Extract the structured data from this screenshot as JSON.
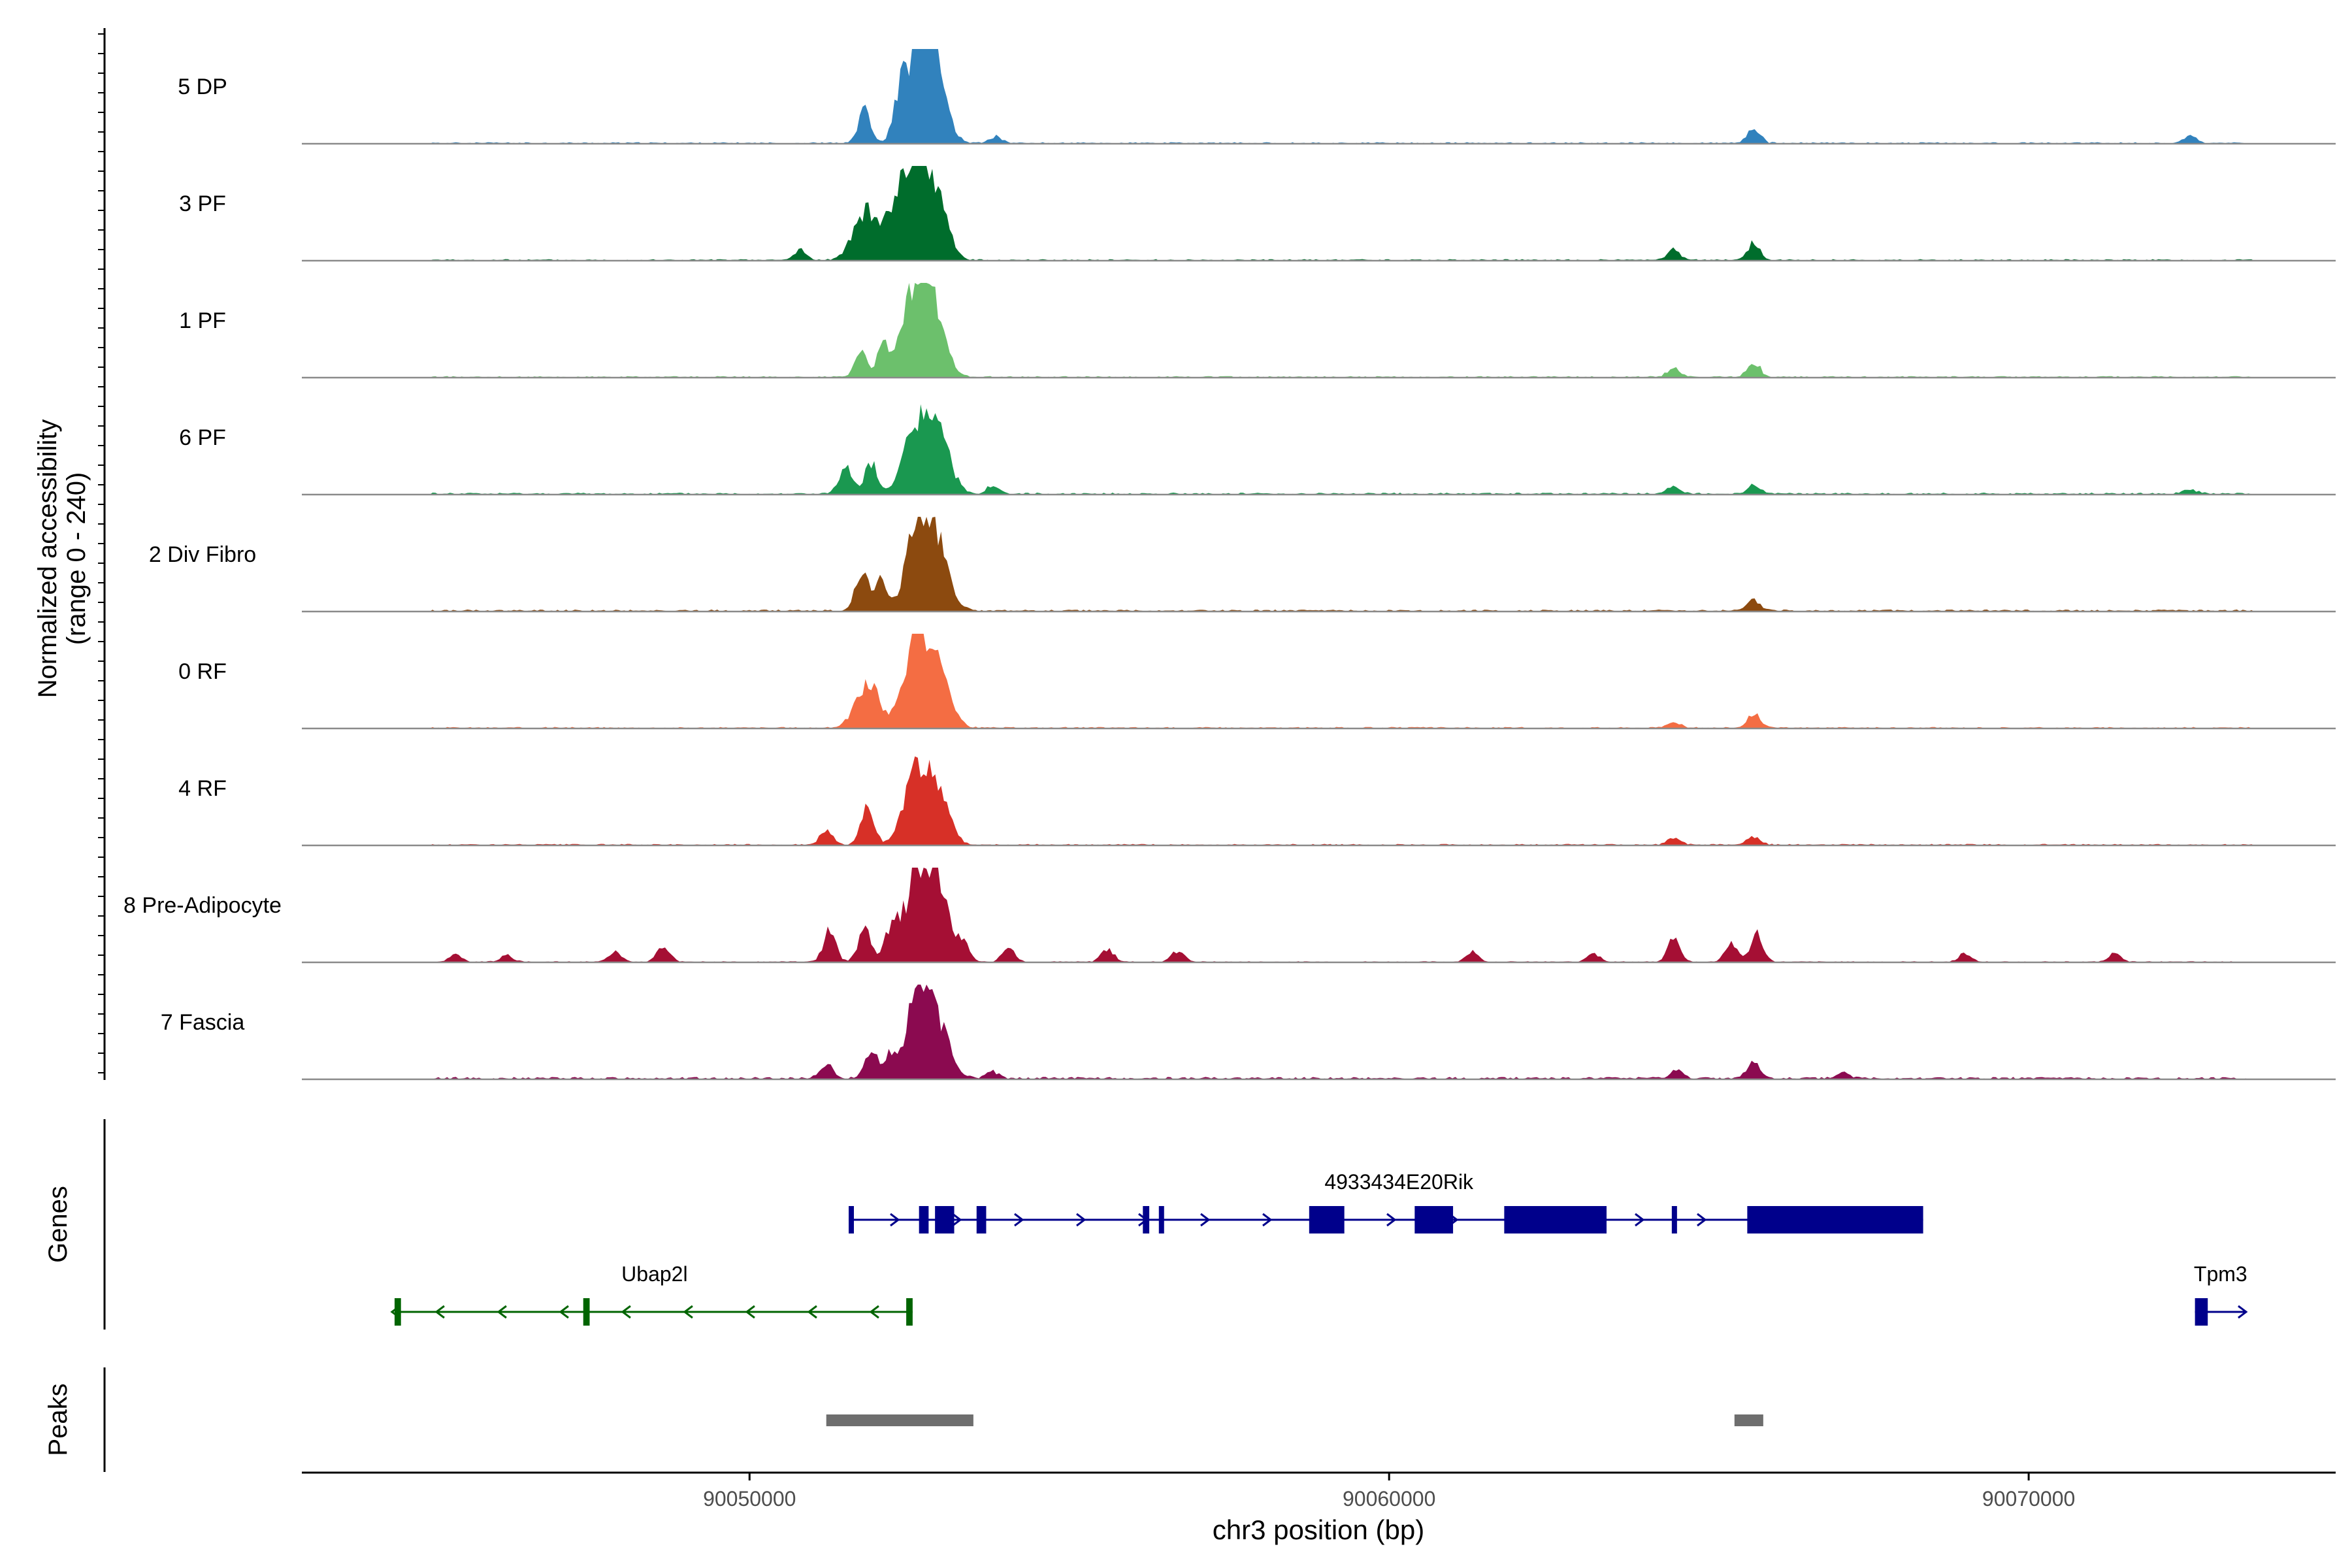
{
  "chart_data": {
    "type": "area",
    "region": "chr3",
    "x_range": [
      90043000,
      90074800
    ],
    "y_axis_label": "Normalized accessibility",
    "y_axis_range_label": "(range 0 - 240)",
    "y_range": [
      0,
      240
    ],
    "x_axis_label": "chr3 position (bp)",
    "x_ticks": [
      {
        "value": 90050000,
        "label": "90050000"
      },
      {
        "value": 90060000,
        "label": "90060000"
      },
      {
        "value": 90070000,
        "label": "90070000"
      }
    ],
    "tracks": [
      {
        "name": "5 DP",
        "color": "#3182bd",
        "peaks": [
          [
            90051800,
            84
          ],
          [
            90052350,
            100
          ],
          [
            90052650,
            240
          ],
          [
            90052900,
            150
          ],
          [
            90053850,
            18
          ],
          [
            90065700,
            40
          ],
          [
            90072530,
            18
          ]
        ],
        "noise": 4,
        "seed": 11
      },
      {
        "name": "3 PF",
        "color": "#006d2c",
        "peaks": [
          [
            90051800,
            120
          ],
          [
            90052250,
            110
          ],
          [
            90052600,
            225
          ],
          [
            90052900,
            160
          ],
          [
            90050800,
            25
          ],
          [
            90064450,
            25
          ],
          [
            90065700,
            45
          ]
        ],
        "noise": 4,
        "seed": 23
      },
      {
        "name": "1 PF",
        "color": "#6cc06c",
        "peaks": [
          [
            90051750,
            60
          ],
          [
            90052100,
            80
          ],
          [
            90052400,
            60
          ],
          [
            90052650,
            240
          ],
          [
            90052900,
            115
          ],
          [
            90064450,
            22
          ],
          [
            90065700,
            40
          ]
        ],
        "noise": 4,
        "seed": 37
      },
      {
        "name": "6 PF",
        "color": "#1a9850",
        "peaks": [
          [
            90051500,
            70
          ],
          [
            90051900,
            80
          ],
          [
            90052600,
            165
          ],
          [
            90052950,
            145
          ],
          [
            90053800,
            20
          ],
          [
            90064450,
            18
          ],
          [
            90065700,
            22
          ],
          [
            90072530,
            12
          ]
        ],
        "noise": 5,
        "seed": 41
      },
      {
        "name": "2 Div Fibro",
        "color": "#8c4a0f",
        "peaks": [
          [
            90051750,
            100
          ],
          [
            90052050,
            80
          ],
          [
            90052650,
            240
          ],
          [
            90052950,
            130
          ],
          [
            90065700,
            30
          ]
        ],
        "noise": 5,
        "seed": 53
      },
      {
        "name": "0 RF",
        "color": "#f46d43",
        "peaks": [
          [
            90051850,
            115
          ],
          [
            90052600,
            240
          ],
          [
            90052950,
            130
          ],
          [
            90064450,
            18
          ],
          [
            90065700,
            35
          ]
        ],
        "noise": 4,
        "seed": 67
      },
      {
        "name": "4 RF",
        "color": "#d73027",
        "peaks": [
          [
            90051200,
            35
          ],
          [
            90051850,
            100
          ],
          [
            90052600,
            185
          ],
          [
            90052950,
            115
          ],
          [
            90064450,
            20
          ],
          [
            90065700,
            20
          ]
        ],
        "noise": 4,
        "seed": 79
      },
      {
        "name": "8 Pre-Adipocyte",
        "color": "#a50f34",
        "peaks": [
          [
            90045400,
            18
          ],
          [
            90046200,
            18
          ],
          [
            90047900,
            25
          ],
          [
            90048650,
            40
          ],
          [
            90051250,
            80
          ],
          [
            90051800,
            85
          ],
          [
            90052200,
            65
          ],
          [
            90052550,
            170
          ],
          [
            90052900,
            220
          ],
          [
            90053350,
            45
          ],
          [
            90054050,
            35
          ],
          [
            90055600,
            35
          ],
          [
            90056700,
            30
          ],
          [
            90061300,
            25
          ],
          [
            90063200,
            22
          ],
          [
            90064450,
            60
          ],
          [
            90065350,
            45
          ],
          [
            90065750,
            70
          ],
          [
            90069000,
            22
          ],
          [
            90071350,
            22
          ]
        ],
        "noise": 3,
        "seed": 83
      },
      {
        "name": "7 Fascia",
        "color": "#8b0a50",
        "peaks": [
          [
            90051200,
            40
          ],
          [
            90051900,
            70
          ],
          [
            90052200,
            55
          ],
          [
            90052650,
            220
          ],
          [
            90052950,
            120
          ],
          [
            90053800,
            18
          ],
          [
            90064500,
            20
          ],
          [
            90065700,
            40
          ],
          [
            90067100,
            15
          ]
        ],
        "noise": 6,
        "seed": 97
      }
    ]
  },
  "genes_panel": {
    "label": "Genes",
    "genes": [
      {
        "name": "4933434E20Rik",
        "strand": "+",
        "color": "#00008b",
        "start": 90051550,
        "end": 90068350,
        "exons": [
          [
            90051550,
            90051600
          ],
          [
            90052650,
            90052800
          ],
          [
            90052900,
            90053200
          ],
          [
            90053550,
            90053700
          ],
          [
            90056150,
            90056250
          ],
          [
            90056400,
            90056450
          ],
          [
            90058750,
            90059300
          ],
          [
            90060400,
            90061000
          ],
          [
            90061800,
            90063400
          ],
          [
            90064420,
            90064500
          ],
          [
            90065600,
            90068350
          ]
        ]
      },
      {
        "name": "Ubap2l",
        "strand": "-",
        "color": "#006400",
        "start": 90044450,
        "end": 90052550,
        "exons": [
          [
            90044450,
            90044550
          ],
          [
            90047400,
            90047500
          ],
          [
            90052450,
            90052550
          ]
        ]
      },
      {
        "name": "Tpm3",
        "strand": "+",
        "color": "#00008b",
        "start": 90072600,
        "end": 90073400,
        "exons": [
          [
            90072600,
            90072800
          ]
        ]
      }
    ]
  },
  "peaks_panel": {
    "label": "Peaks",
    "color": "#6e6e6e",
    "regions": [
      [
        90051200,
        90053500
      ],
      [
        90065400,
        90065850
      ]
    ]
  }
}
